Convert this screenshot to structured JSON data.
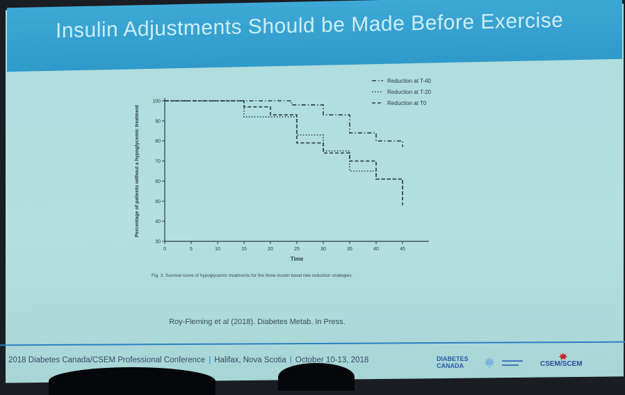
{
  "slide_title": "Insulin Adjustments Should be Made Before Exercise",
  "chart_data": {
    "type": "line",
    "title": "",
    "xlabel": "Time",
    "ylabel": "Percentage of patients without a hypoglycemic treatment",
    "xlim": [
      0,
      50
    ],
    "ylim": [
      30,
      100
    ],
    "xticks": [
      "0",
      "5",
      "10",
      "15",
      "20",
      "25",
      "30",
      "35",
      "40",
      "45"
    ],
    "yticks": [
      "30",
      "40",
      "50",
      "60",
      "70",
      "80",
      "90",
      "100"
    ],
    "legend_position": "top-right",
    "series": [
      {
        "name": "Reduction at T-40",
        "dash": "dashdot",
        "points": [
          [
            0,
            100
          ],
          [
            24,
            100
          ],
          [
            24,
            98
          ],
          [
            30,
            98
          ],
          [
            30,
            93
          ],
          [
            35,
            93
          ],
          [
            35,
            84
          ],
          [
            40,
            84
          ],
          [
            40,
            80
          ],
          [
            45,
            80
          ],
          [
            45,
            77
          ]
        ]
      },
      {
        "name": "Reduction at T-20",
        "dash": "dotted",
        "points": [
          [
            0,
            100
          ],
          [
            15,
            100
          ],
          [
            15,
            92
          ],
          [
            25,
            92
          ],
          [
            25,
            83
          ],
          [
            30,
            83
          ],
          [
            30,
            75
          ],
          [
            35,
            75
          ],
          [
            35,
            65
          ],
          [
            40,
            65
          ],
          [
            40,
            61
          ],
          [
            45,
            61
          ],
          [
            45,
            52
          ]
        ]
      },
      {
        "name": "Reduction at T0",
        "dash": "dashed",
        "points": [
          [
            0,
            100
          ],
          [
            15,
            100
          ],
          [
            15,
            97
          ],
          [
            20,
            97
          ],
          [
            20,
            93
          ],
          [
            25,
            93
          ],
          [
            25,
            79
          ],
          [
            30,
            79
          ],
          [
            30,
            74
          ],
          [
            35,
            74
          ],
          [
            35,
            70
          ],
          [
            40,
            70
          ],
          [
            40,
            61
          ],
          [
            45,
            61
          ],
          [
            45,
            48
          ]
        ]
      }
    ]
  },
  "caption": "Fig. 3. Survival curve of hypoglycemic treatments for the three insulin basal rate reduction strategies.",
  "citation": "Roy-Fleming et al (2018). Diabetes Metab. In Press.",
  "footer": {
    "conference": "2018 Diabetes Canada/CSEM Professional Conference",
    "location": "Halifax, Nova Scotia",
    "dates": "October 10-13, 2018",
    "logo_dc_line1": "DIABETES",
    "logo_dc_line2": "CANADA",
    "logo_csem": "CSEM/SCEM"
  },
  "colors": {
    "title_band": "#3ea8d6",
    "slide_bg": "#b4e0df",
    "line": "#2a3a44",
    "footer_rule": "#2d7fc0"
  }
}
